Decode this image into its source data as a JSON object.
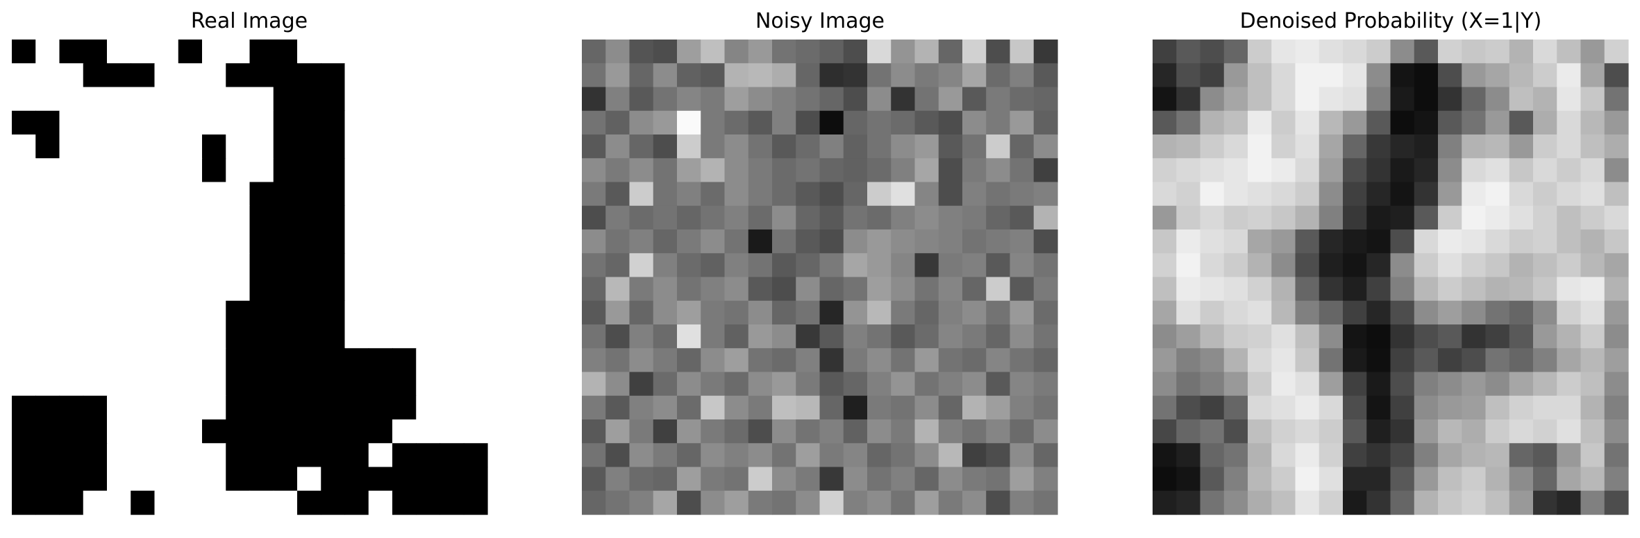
{
  "figure": {
    "background": "#ffffff"
  },
  "chart_data": [
    {
      "type": "heatmap",
      "title": "Real Image",
      "colormap": "gray",
      "value_range": [
        0,
        1
      ],
      "grid": false,
      "axes_visible": false,
      "rows": 20,
      "cols": 20,
      "values": [
        [
          0,
          1,
          0,
          0,
          1,
          1,
          1,
          0,
          1,
          1,
          0,
          0,
          1,
          1,
          1,
          1,
          1,
          1,
          1,
          1
        ],
        [
          1,
          1,
          1,
          0,
          0,
          0,
          1,
          1,
          1,
          0,
          0,
          0,
          0,
          0,
          1,
          1,
          1,
          1,
          1,
          1
        ],
        [
          1,
          1,
          1,
          1,
          1,
          1,
          1,
          1,
          1,
          1,
          1,
          0,
          0,
          0,
          1,
          1,
          1,
          1,
          1,
          1
        ],
        [
          0,
          0,
          1,
          1,
          1,
          1,
          1,
          1,
          1,
          1,
          1,
          0,
          0,
          0,
          1,
          1,
          1,
          1,
          1,
          1
        ],
        [
          1,
          0,
          1,
          1,
          1,
          1,
          1,
          1,
          0,
          1,
          1,
          0,
          0,
          0,
          1,
          1,
          1,
          1,
          1,
          1
        ],
        [
          1,
          1,
          1,
          1,
          1,
          1,
          1,
          1,
          0,
          1,
          1,
          0,
          0,
          0,
          1,
          1,
          1,
          1,
          1,
          1
        ],
        [
          1,
          1,
          1,
          1,
          1,
          1,
          1,
          1,
          1,
          1,
          0,
          0,
          0,
          0,
          1,
          1,
          1,
          1,
          1,
          1
        ],
        [
          1,
          1,
          1,
          1,
          1,
          1,
          1,
          1,
          1,
          1,
          0,
          0,
          0,
          0,
          1,
          1,
          1,
          1,
          1,
          1
        ],
        [
          1,
          1,
          1,
          1,
          1,
          1,
          1,
          1,
          1,
          1,
          0,
          0,
          0,
          0,
          1,
          1,
          1,
          1,
          1,
          1
        ],
        [
          1,
          1,
          1,
          1,
          1,
          1,
          1,
          1,
          1,
          1,
          0,
          0,
          0,
          0,
          1,
          1,
          1,
          1,
          1,
          1
        ],
        [
          1,
          1,
          1,
          1,
          1,
          1,
          1,
          1,
          1,
          1,
          0,
          0,
          0,
          0,
          1,
          1,
          1,
          1,
          1,
          1
        ],
        [
          1,
          1,
          1,
          1,
          1,
          1,
          1,
          1,
          1,
          0,
          0,
          0,
          0,
          0,
          1,
          1,
          1,
          1,
          1,
          1
        ],
        [
          1,
          1,
          1,
          1,
          1,
          1,
          1,
          1,
          1,
          0,
          0,
          0,
          0,
          0,
          1,
          1,
          1,
          1,
          1,
          1
        ],
        [
          1,
          1,
          1,
          1,
          1,
          1,
          1,
          1,
          1,
          0,
          0,
          0,
          0,
          0,
          0,
          0,
          0,
          1,
          1,
          1
        ],
        [
          1,
          1,
          1,
          1,
          1,
          1,
          1,
          1,
          1,
          0,
          0,
          0,
          0,
          0,
          0,
          0,
          0,
          1,
          1,
          1
        ],
        [
          0,
          0,
          0,
          0,
          1,
          1,
          1,
          1,
          1,
          0,
          0,
          0,
          0,
          0,
          0,
          0,
          0,
          1,
          1,
          1
        ],
        [
          0,
          0,
          0,
          0,
          1,
          1,
          1,
          1,
          0,
          0,
          0,
          0,
          0,
          0,
          0,
          0,
          1,
          1,
          1,
          1
        ],
        [
          0,
          0,
          0,
          0,
          1,
          1,
          1,
          1,
          1,
          0,
          0,
          0,
          0,
          0,
          0,
          1,
          0,
          0,
          0,
          0
        ],
        [
          0,
          0,
          0,
          0,
          1,
          1,
          1,
          1,
          1,
          0,
          0,
          0,
          1,
          0,
          0,
          0,
          0,
          0,
          0,
          0
        ],
        [
          0,
          0,
          0,
          1,
          1,
          0,
          1,
          1,
          1,
          1,
          1,
          1,
          0,
          0,
          0,
          1,
          0,
          0,
          0,
          0
        ]
      ]
    },
    {
      "type": "heatmap",
      "title": "Noisy Image",
      "colormap": "gray",
      "value_range": [
        0,
        1
      ],
      "grid": false,
      "axes_visible": false,
      "rows": 20,
      "cols": 20,
      "values": [
        [
          0.4,
          0.55,
          0.33,
          0.3,
          0.62,
          0.75,
          0.52,
          0.6,
          0.45,
          0.42,
          0.38,
          0.3,
          0.85,
          0.58,
          0.7,
          0.4,
          0.82,
          0.3,
          0.78,
          0.22
        ],
        [
          0.45,
          0.6,
          0.4,
          0.55,
          0.38,
          0.35,
          0.7,
          0.72,
          0.68,
          0.4,
          0.18,
          0.2,
          0.45,
          0.55,
          0.48,
          0.52,
          0.65,
          0.42,
          0.5,
          0.35
        ],
        [
          0.2,
          0.5,
          0.35,
          0.45,
          0.52,
          0.48,
          0.62,
          0.55,
          0.5,
          0.45,
          0.4,
          0.3,
          0.55,
          0.2,
          0.45,
          0.6,
          0.35,
          0.48,
          0.42,
          0.4
        ],
        [
          0.45,
          0.38,
          0.55,
          0.6,
          0.98,
          0.48,
          0.42,
          0.35,
          0.5,
          0.3,
          0.05,
          0.4,
          0.45,
          0.42,
          0.35,
          0.3,
          0.55,
          0.48,
          0.6,
          0.38
        ],
        [
          0.35,
          0.55,
          0.4,
          0.3,
          0.8,
          0.48,
          0.55,
          0.45,
          0.35,
          0.42,
          0.5,
          0.38,
          0.45,
          0.55,
          0.6,
          0.35,
          0.45,
          0.8,
          0.4,
          0.55
        ],
        [
          0.55,
          0.48,
          0.55,
          0.45,
          0.62,
          0.7,
          0.55,
          0.48,
          0.42,
          0.45,
          0.4,
          0.38,
          0.42,
          0.5,
          0.65,
          0.3,
          0.48,
          0.55,
          0.45,
          0.25
        ],
        [
          0.48,
          0.35,
          0.8,
          0.45,
          0.5,
          0.42,
          0.55,
          0.48,
          0.42,
          0.35,
          0.3,
          0.4,
          0.8,
          0.88,
          0.52,
          0.3,
          0.5,
          0.45,
          0.48,
          0.5
        ],
        [
          0.3,
          0.48,
          0.42,
          0.45,
          0.4,
          0.45,
          0.5,
          0.42,
          0.55,
          0.4,
          0.35,
          0.45,
          0.42,
          0.5,
          0.55,
          0.5,
          0.48,
          0.4,
          0.35,
          0.7
        ],
        [
          0.55,
          0.45,
          0.5,
          0.4,
          0.48,
          0.55,
          0.45,
          0.1,
          0.45,
          0.35,
          0.3,
          0.55,
          0.6,
          0.55,
          0.52,
          0.5,
          0.45,
          0.48,
          0.5,
          0.3
        ],
        [
          0.45,
          0.4,
          0.82,
          0.5,
          0.42,
          0.38,
          0.5,
          0.45,
          0.35,
          0.4,
          0.48,
          0.65,
          0.6,
          0.52,
          0.22,
          0.48,
          0.5,
          0.35,
          0.52,
          0.45
        ],
        [
          0.4,
          0.72,
          0.48,
          0.55,
          0.45,
          0.5,
          0.55,
          0.35,
          0.3,
          0.55,
          0.4,
          0.45,
          0.62,
          0.55,
          0.45,
          0.52,
          0.4,
          0.8,
          0.35,
          0.48
        ],
        [
          0.35,
          0.6,
          0.4,
          0.55,
          0.62,
          0.48,
          0.45,
          0.55,
          0.4,
          0.45,
          0.15,
          0.58,
          0.72,
          0.48,
          0.4,
          0.5,
          0.55,
          0.45,
          0.6,
          0.42
        ],
        [
          0.45,
          0.3,
          0.5,
          0.42,
          0.88,
          0.48,
          0.38,
          0.6,
          0.55,
          0.22,
          0.35,
          0.5,
          0.45,
          0.35,
          0.42,
          0.52,
          0.48,
          0.4,
          0.55,
          0.45
        ],
        [
          0.5,
          0.45,
          0.55,
          0.48,
          0.4,
          0.55,
          0.62,
          0.45,
          0.42,
          0.5,
          0.2,
          0.48,
          0.55,
          0.45,
          0.6,
          0.45,
          0.42,
          0.52,
          0.45,
          0.4
        ],
        [
          0.7,
          0.55,
          0.25,
          0.42,
          0.55,
          0.48,
          0.42,
          0.55,
          0.6,
          0.48,
          0.35,
          0.4,
          0.5,
          0.58,
          0.45,
          0.5,
          0.55,
          0.35,
          0.52,
          0.48
        ],
        [
          0.48,
          0.35,
          0.5,
          0.55,
          0.42,
          0.78,
          0.55,
          0.48,
          0.75,
          0.72,
          0.4,
          0.12,
          0.48,
          0.45,
          0.55,
          0.4,
          0.7,
          0.62,
          0.5,
          0.45
        ],
        [
          0.35,
          0.62,
          0.48,
          0.25,
          0.58,
          0.48,
          0.42,
          0.3,
          0.55,
          0.45,
          0.5,
          0.38,
          0.55,
          0.48,
          0.7,
          0.5,
          0.45,
          0.52,
          0.42,
          0.55
        ],
        [
          0.45,
          0.3,
          0.55,
          0.48,
          0.4,
          0.55,
          0.5,
          0.55,
          0.45,
          0.62,
          0.48,
          0.52,
          0.4,
          0.45,
          0.55,
          0.72,
          0.25,
          0.3,
          0.55,
          0.4
        ],
        [
          0.35,
          0.5,
          0.42,
          0.4,
          0.62,
          0.48,
          0.45,
          0.8,
          0.55,
          0.48,
          0.22,
          0.55,
          0.45,
          0.5,
          0.4,
          0.55,
          0.48,
          0.45,
          0.62,
          0.5
        ],
        [
          0.4,
          0.45,
          0.5,
          0.65,
          0.3,
          0.55,
          0.62,
          0.48,
          0.45,
          0.55,
          0.82,
          0.5,
          0.55,
          0.45,
          0.62,
          0.48,
          0.55,
          0.3,
          0.5,
          0.45
        ]
      ]
    },
    {
      "type": "heatmap",
      "title": "Denoised Probability (X=1|Y)",
      "colormap": "gray",
      "value_range": [
        0,
        1
      ],
      "grid": false,
      "axes_visible": false,
      "rows": 20,
      "cols": 20,
      "values": [
        [
          0.25,
          0.35,
          0.3,
          0.4,
          0.8,
          0.9,
          0.92,
          0.88,
          0.85,
          0.8,
          0.55,
          0.35,
          0.82,
          0.78,
          0.8,
          0.7,
          0.85,
          0.75,
          0.6,
          0.82
        ],
        [
          0.15,
          0.3,
          0.25,
          0.6,
          0.75,
          0.85,
          0.95,
          0.95,
          0.9,
          0.55,
          0.08,
          0.05,
          0.3,
          0.6,
          0.65,
          0.72,
          0.8,
          0.92,
          0.65,
          0.3
        ],
        [
          0.08,
          0.2,
          0.55,
          0.65,
          0.75,
          0.85,
          0.95,
          0.9,
          0.88,
          0.5,
          0.1,
          0.05,
          0.2,
          0.4,
          0.55,
          0.75,
          0.7,
          0.9,
          0.78,
          0.45
        ],
        [
          0.35,
          0.45,
          0.7,
          0.75,
          0.92,
          0.8,
          0.9,
          0.72,
          0.6,
          0.35,
          0.05,
          0.08,
          0.35,
          0.45,
          0.6,
          0.35,
          0.68,
          0.85,
          0.72,
          0.6
        ],
        [
          0.7,
          0.72,
          0.8,
          0.85,
          0.95,
          0.82,
          0.88,
          0.65,
          0.4,
          0.22,
          0.15,
          0.12,
          0.5,
          0.7,
          0.72,
          0.6,
          0.8,
          0.85,
          0.75,
          0.68
        ],
        [
          0.82,
          0.85,
          0.88,
          0.9,
          0.95,
          0.92,
          0.85,
          0.62,
          0.3,
          0.2,
          0.1,
          0.15,
          0.55,
          0.85,
          0.88,
          0.78,
          0.85,
          0.8,
          0.85,
          0.55
        ],
        [
          0.85,
          0.82,
          0.95,
          0.9,
          0.88,
          0.85,
          0.8,
          0.55,
          0.25,
          0.15,
          0.08,
          0.2,
          0.6,
          0.92,
          0.95,
          0.85,
          0.8,
          0.85,
          0.88,
          0.75
        ],
        [
          0.6,
          0.8,
          0.85,
          0.8,
          0.82,
          0.78,
          0.7,
          0.5,
          0.22,
          0.1,
          0.12,
          0.35,
          0.8,
          0.95,
          0.92,
          0.88,
          0.82,
          0.75,
          0.8,
          0.85
        ],
        [
          0.78,
          0.92,
          0.88,
          0.85,
          0.65,
          0.6,
          0.35,
          0.15,
          0.1,
          0.08,
          0.3,
          0.85,
          0.92,
          0.9,
          0.85,
          0.8,
          0.82,
          0.75,
          0.7,
          0.78
        ],
        [
          0.82,
          0.95,
          0.85,
          0.8,
          0.7,
          0.55,
          0.3,
          0.12,
          0.08,
          0.15,
          0.55,
          0.8,
          0.88,
          0.82,
          0.78,
          0.7,
          0.75,
          0.8,
          0.72,
          0.65
        ],
        [
          0.75,
          0.92,
          0.9,
          0.88,
          0.82,
          0.7,
          0.4,
          0.2,
          0.12,
          0.25,
          0.5,
          0.72,
          0.8,
          0.75,
          0.7,
          0.72,
          0.78,
          0.9,
          0.92,
          0.7
        ],
        [
          0.65,
          0.88,
          0.8,
          0.85,
          0.88,
          0.72,
          0.5,
          0.4,
          0.25,
          0.15,
          0.3,
          0.55,
          0.62,
          0.55,
          0.45,
          0.4,
          0.55,
          0.82,
          0.88,
          0.6
        ],
        [
          0.55,
          0.62,
          0.72,
          0.8,
          0.82,
          0.88,
          0.75,
          0.55,
          0.08,
          0.05,
          0.2,
          0.3,
          0.35,
          0.2,
          0.25,
          0.35,
          0.6,
          0.7,
          0.8,
          0.55
        ],
        [
          0.6,
          0.5,
          0.55,
          0.7,
          0.85,
          0.9,
          0.78,
          0.45,
          0.1,
          0.06,
          0.25,
          0.35,
          0.25,
          0.3,
          0.45,
          0.4,
          0.5,
          0.65,
          0.72,
          0.62
        ],
        [
          0.55,
          0.45,
          0.5,
          0.6,
          0.8,
          0.92,
          0.88,
          0.62,
          0.25,
          0.1,
          0.3,
          0.5,
          0.55,
          0.6,
          0.55,
          0.65,
          0.72,
          0.8,
          0.75,
          0.55
        ],
        [
          0.45,
          0.3,
          0.25,
          0.4,
          0.85,
          0.88,
          0.92,
          0.85,
          0.3,
          0.08,
          0.25,
          0.55,
          0.6,
          0.62,
          0.75,
          0.82,
          0.85,
          0.85,
          0.7,
          0.5
        ],
        [
          0.28,
          0.4,
          0.45,
          0.3,
          0.75,
          0.82,
          0.85,
          0.8,
          0.35,
          0.12,
          0.2,
          0.6,
          0.72,
          0.68,
          0.8,
          0.85,
          0.82,
          0.88,
          0.75,
          0.55
        ],
        [
          0.08,
          0.12,
          0.4,
          0.45,
          0.7,
          0.85,
          0.92,
          0.82,
          0.25,
          0.2,
          0.28,
          0.5,
          0.65,
          0.7,
          0.72,
          0.4,
          0.35,
          0.6,
          0.78,
          0.45
        ],
        [
          0.05,
          0.08,
          0.35,
          0.5,
          0.72,
          0.8,
          0.95,
          0.88,
          0.15,
          0.15,
          0.35,
          0.6,
          0.75,
          0.8,
          0.7,
          0.55,
          0.4,
          0.65,
          0.72,
          0.5
        ],
        [
          0.12,
          0.15,
          0.45,
          0.55,
          0.68,
          0.75,
          0.9,
          0.82,
          0.1,
          0.2,
          0.4,
          0.7,
          0.78,
          0.82,
          0.75,
          0.6,
          0.2,
          0.15,
          0.5,
          0.3
        ]
      ]
    }
  ]
}
